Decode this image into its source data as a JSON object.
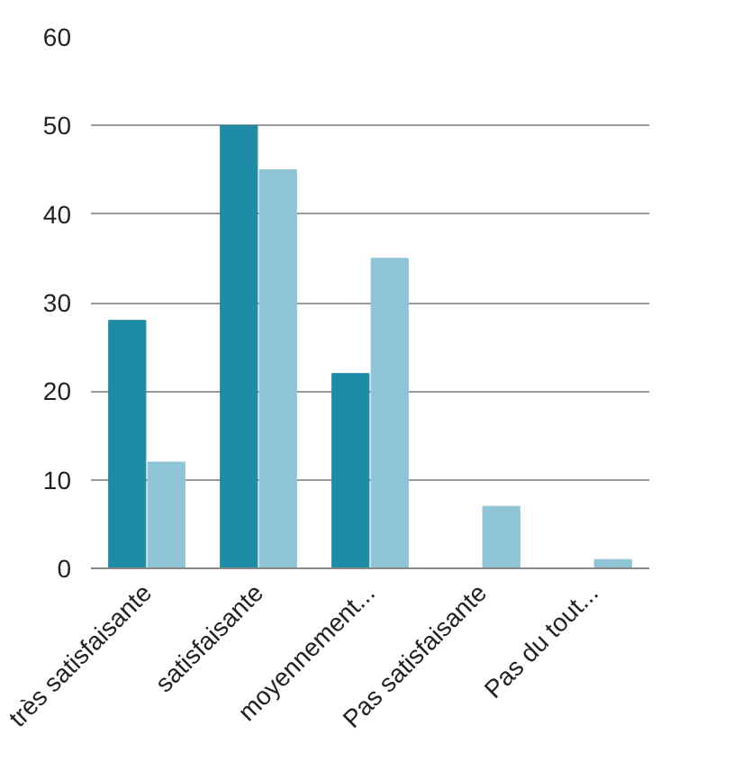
{
  "chart_data": {
    "type": "bar",
    "categories": [
      "très satisfaisante",
      "satisfaisante",
      "moyennement...",
      "Pas satisfaisante",
      "Pas du tout..."
    ],
    "series": [
      {
        "color": "#1f8ca6",
        "values": [
          28,
          50,
          22,
          0,
          0
        ]
      },
      {
        "color": "#8ec4d6",
        "values": [
          12,
          45,
          35,
          7,
          1
        ]
      }
    ],
    "ylim": [
      0,
      60
    ],
    "yticks": [
      0,
      10,
      20,
      30,
      40,
      50,
      60
    ],
    "grid": "y"
  }
}
